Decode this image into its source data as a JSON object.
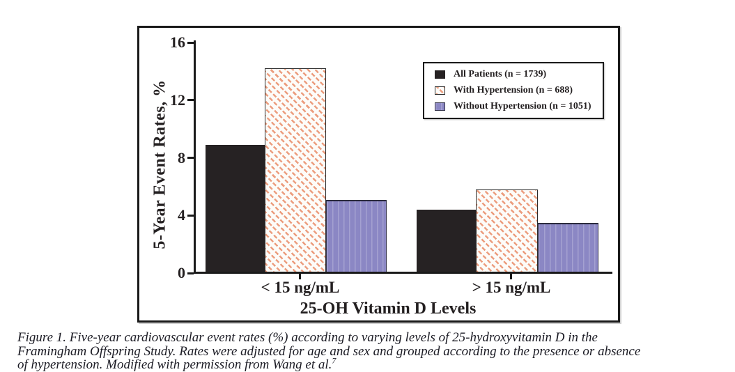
{
  "chart_data": {
    "type": "bar",
    "title": "",
    "xlabel": "25-OH Vitamin D Levels",
    "ylabel": "5-Year Event Rates, %",
    "categories": [
      "< 15 ng/mL",
      "> 15 ng/mL"
    ],
    "series": [
      {
        "name": "All Patients (n = 1739)",
        "color": "#231F20",
        "pattern": "solid-black",
        "values": [
          8.9,
          4.4
        ]
      },
      {
        "name": "With Hypertension (n = 688)",
        "color": "#EC9D7E",
        "pattern": "diagonal-hatch-on-white",
        "values": [
          14.2,
          5.8
        ]
      },
      {
        "name": "Without Hypertension (n = 1051)",
        "color": "#8B87C4",
        "pattern": "vertical-stripes",
        "values": [
          5.1,
          3.5
        ]
      }
    ],
    "ylim": [
      0,
      16
    ],
    "yticks": [
      0,
      4,
      8,
      12,
      16
    ],
    "grid": false,
    "legend_position": "upper-right-inside"
  },
  "caption": {
    "lines": [
      "Figure 1. Five-year cardiovascular event rates (%) according to varying levels of 25-hydroxyvitamin D in the",
      "Framingham Offspring Study. Rates were adjusted for age and sex and grouped according to the presence or absence",
      "of hypertension. Modified with permission from Wang et al."
    ],
    "citation_sup": "7"
  }
}
